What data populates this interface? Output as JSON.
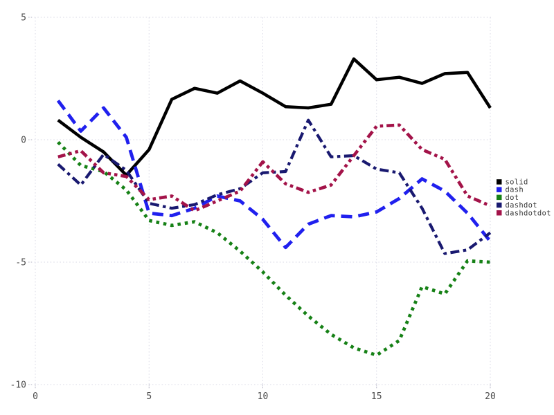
{
  "chart_data": {
    "type": "line",
    "title": "",
    "xlabel": "",
    "ylabel": "",
    "x": [
      1,
      2,
      3,
      4,
      5,
      6,
      7,
      8,
      9,
      10,
      11,
      12,
      13,
      14,
      15,
      16,
      17,
      18,
      19,
      20
    ],
    "series": [
      {
        "name": "solid",
        "color": "#000000",
        "dash_style": "solid",
        "values": [
          0.8,
          0.1,
          -0.5,
          -1.45,
          -0.4,
          1.65,
          2.1,
          1.9,
          2.4,
          1.9,
          1.35,
          1.3,
          1.45,
          3.3,
          2.45,
          2.55,
          2.3,
          2.7,
          2.75,
          1.3
        ]
      },
      {
        "name": "dash",
        "color": "#2020ee",
        "dash_style": "dash",
        "values": [
          1.6,
          0.35,
          1.3,
          0.1,
          -3.0,
          -3.1,
          -2.8,
          -2.3,
          -2.5,
          -3.25,
          -4.4,
          -3.45,
          -3.1,
          -3.15,
          -2.95,
          -2.4,
          -1.6,
          -2.1,
          -3.0,
          -4.15
        ]
      },
      {
        "name": "dot",
        "color": "#168116",
        "dash_style": "dot",
        "values": [
          -0.1,
          -1.05,
          -1.3,
          -2.05,
          -3.3,
          -3.5,
          -3.35,
          -3.8,
          -4.55,
          -5.4,
          -6.35,
          -7.2,
          -7.95,
          -8.5,
          -8.8,
          -8.2,
          -6.0,
          -6.3,
          -4.95,
          -5.0
        ]
      },
      {
        "name": "dashdot",
        "color": "#191970",
        "dash_style": "dashdot",
        "values": [
          -1.0,
          -1.85,
          -0.6,
          -1.25,
          -2.6,
          -2.8,
          -2.65,
          -2.25,
          -2.0,
          -1.35,
          -1.3,
          0.8,
          -0.7,
          -0.65,
          -1.2,
          -1.35,
          -2.8,
          -4.65,
          -4.5,
          -3.8
        ]
      },
      {
        "name": "dashdotdot",
        "color": "#a31349",
        "dash_style": "dashdotdot",
        "values": [
          -0.7,
          -0.45,
          -1.35,
          -1.5,
          -2.45,
          -2.3,
          -2.9,
          -2.5,
          -2.1,
          -0.9,
          -1.8,
          -2.15,
          -1.85,
          -0.65,
          0.55,
          0.6,
          -0.4,
          -0.8,
          -2.3,
          -2.7
        ]
      }
    ],
    "xticks": [
      "0",
      "5",
      "10",
      "15",
      "20"
    ],
    "xtick_values": [
      0,
      5,
      10,
      15,
      20
    ],
    "yticks": [
      "5",
      "0",
      "-5",
      "-10"
    ],
    "ytick_values": [
      5,
      0,
      -5,
      -10
    ],
    "xlim": [
      0,
      20
    ],
    "ylim": [
      -10,
      5
    ],
    "grid": "dotted",
    "grid_color": "#d9d9e6",
    "tick_color": "#4d4d4d",
    "legend_position": "right-outside",
    "legend_entries": [
      "solid",
      "dash",
      "dot",
      "dashdot",
      "dashdotdot"
    ]
  }
}
